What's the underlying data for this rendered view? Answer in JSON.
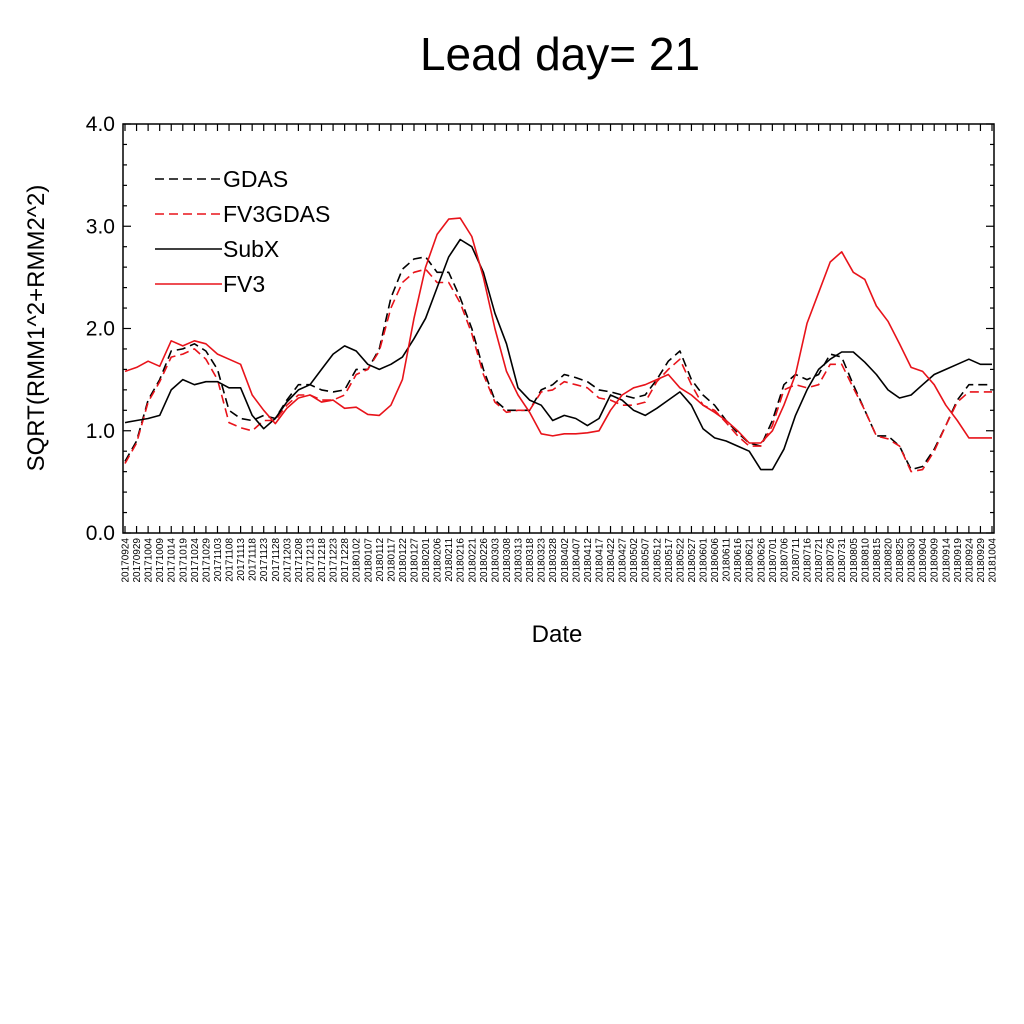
{
  "chart_data": {
    "type": "line",
    "title": "Lead day=  21",
    "xlabel": "Date",
    "ylabel": "SQRT(RMM1^2+RMM2^2)",
    "ylim": [
      0.0,
      4.0
    ],
    "yticks": [
      "0.0",
      "1.0",
      "2.0",
      "3.0",
      "4.0"
    ],
    "grid": false,
    "legend_position": "top-left",
    "x": [
      "20170924",
      "20170929",
      "20171004",
      "20171009",
      "20171014",
      "20171019",
      "20171024",
      "20171029",
      "20171103",
      "20171108",
      "20171113",
      "20171118",
      "20171123",
      "20171128",
      "20171203",
      "20171208",
      "20171213",
      "20171218",
      "20171223",
      "20171228",
      "20180102",
      "20180107",
      "20180112",
      "20180117",
      "20180122",
      "20180127",
      "20180201",
      "20180206",
      "20180211",
      "20180216",
      "20180221",
      "20180226",
      "20180303",
      "20180308",
      "20180313",
      "20180318",
      "20180323",
      "20180328",
      "20180402",
      "20180407",
      "20180412",
      "20180417",
      "20180422",
      "20180427",
      "20180502",
      "20180507",
      "20180512",
      "20180517",
      "20180522",
      "20180527",
      "20180601",
      "20180606",
      "20180611",
      "20180616",
      "20180621",
      "20180626",
      "20180701",
      "20180706",
      "20180711",
      "20180716",
      "20180721",
      "20180726",
      "20180731",
      "20180805",
      "20180810",
      "20180815",
      "20180820",
      "20180825",
      "20180830",
      "20180904",
      "20180909",
      "20180914",
      "20180919",
      "20180924",
      "20180929",
      "20181004"
    ],
    "series": [
      {
        "name": "GDAS",
        "color": "#000000",
        "dash": "dashed",
        "values": [
          0.7,
          0.9,
          1.3,
          1.5,
          1.78,
          1.8,
          1.85,
          1.78,
          1.6,
          1.2,
          1.12,
          1.1,
          1.15,
          1.12,
          1.3,
          1.45,
          1.45,
          1.4,
          1.38,
          1.4,
          1.6,
          1.6,
          1.8,
          2.3,
          2.58,
          2.68,
          2.7,
          2.55,
          2.55,
          2.3,
          2.0,
          1.6,
          1.3,
          1.2,
          1.2,
          1.2,
          1.4,
          1.45,
          1.55,
          1.52,
          1.48,
          1.4,
          1.38,
          1.35,
          1.32,
          1.35,
          1.5,
          1.68,
          1.78,
          1.5,
          1.35,
          1.25,
          1.1,
          0.98,
          0.88,
          0.85,
          1.1,
          1.45,
          1.55,
          1.5,
          1.55,
          1.75,
          1.72,
          1.45,
          1.2,
          0.95,
          0.95,
          0.85,
          0.62,
          0.65,
          0.82,
          1.05,
          1.3,
          1.45,
          1.45,
          1.45
        ]
      },
      {
        "name": "FV3GDAS",
        "color": "#e8131a",
        "dash": "dashed",
        "values": [
          0.68,
          0.88,
          1.28,
          1.48,
          1.72,
          1.75,
          1.8,
          1.7,
          1.5,
          1.08,
          1.03,
          1.0,
          1.1,
          1.1,
          1.25,
          1.35,
          1.35,
          1.3,
          1.3,
          1.35,
          1.55,
          1.6,
          1.78,
          2.2,
          2.45,
          2.55,
          2.58,
          2.45,
          2.45,
          2.25,
          1.95,
          1.55,
          1.28,
          1.18,
          1.2,
          1.2,
          1.38,
          1.4,
          1.48,
          1.45,
          1.42,
          1.32,
          1.3,
          1.25,
          1.25,
          1.28,
          1.48,
          1.6,
          1.7,
          1.45,
          1.25,
          1.2,
          1.08,
          0.95,
          0.85,
          0.85,
          1.05,
          1.4,
          1.45,
          1.42,
          1.45,
          1.65,
          1.65,
          1.42,
          1.2,
          0.95,
          0.92,
          0.85,
          0.6,
          0.62,
          0.8,
          1.05,
          1.28,
          1.38,
          1.38,
          1.38
        ]
      },
      {
        "name": "SubX",
        "color": "#000000",
        "dash": "solid",
        "values": [
          1.08,
          1.1,
          1.12,
          1.15,
          1.4,
          1.5,
          1.45,
          1.48,
          1.48,
          1.42,
          1.42,
          1.15,
          1.02,
          1.12,
          1.28,
          1.4,
          1.45,
          1.6,
          1.75,
          1.83,
          1.78,
          1.65,
          1.6,
          1.65,
          1.72,
          1.9,
          2.1,
          2.4,
          2.7,
          2.87,
          2.8,
          2.55,
          2.15,
          1.85,
          1.42,
          1.3,
          1.25,
          1.1,
          1.15,
          1.12,
          1.05,
          1.12,
          1.35,
          1.3,
          1.2,
          1.15,
          1.22,
          1.3,
          1.38,
          1.25,
          1.02,
          0.93,
          0.9,
          0.85,
          0.8,
          0.62,
          0.62,
          0.82,
          1.15,
          1.4,
          1.6,
          1.7,
          1.77,
          1.77,
          1.67,
          1.55,
          1.4,
          1.32,
          1.35,
          1.45,
          1.55,
          1.6,
          1.65,
          1.7,
          1.65,
          1.65
        ]
      },
      {
        "name": "FV3",
        "color": "#e8131a",
        "dash": "solid",
        "values": [
          1.58,
          1.62,
          1.68,
          1.63,
          1.88,
          1.83,
          1.88,
          1.85,
          1.75,
          1.7,
          1.65,
          1.35,
          1.2,
          1.07,
          1.22,
          1.32,
          1.35,
          1.28,
          1.3,
          1.22,
          1.23,
          1.16,
          1.15,
          1.25,
          1.5,
          2.1,
          2.6,
          2.92,
          3.07,
          3.08,
          2.9,
          2.5,
          2.0,
          1.58,
          1.35,
          1.18,
          0.97,
          0.95,
          0.97,
          0.97,
          0.98,
          1.0,
          1.2,
          1.35,
          1.42,
          1.45,
          1.5,
          1.55,
          1.42,
          1.35,
          1.25,
          1.18,
          1.1,
          1.0,
          0.88,
          0.88,
          1.0,
          1.25,
          1.55,
          2.05,
          2.35,
          2.65,
          2.75,
          2.55,
          2.48,
          2.22,
          2.07,
          1.85,
          1.62,
          1.58,
          1.45,
          1.25,
          1.1,
          0.93,
          0.93,
          0.93
        ]
      }
    ]
  }
}
